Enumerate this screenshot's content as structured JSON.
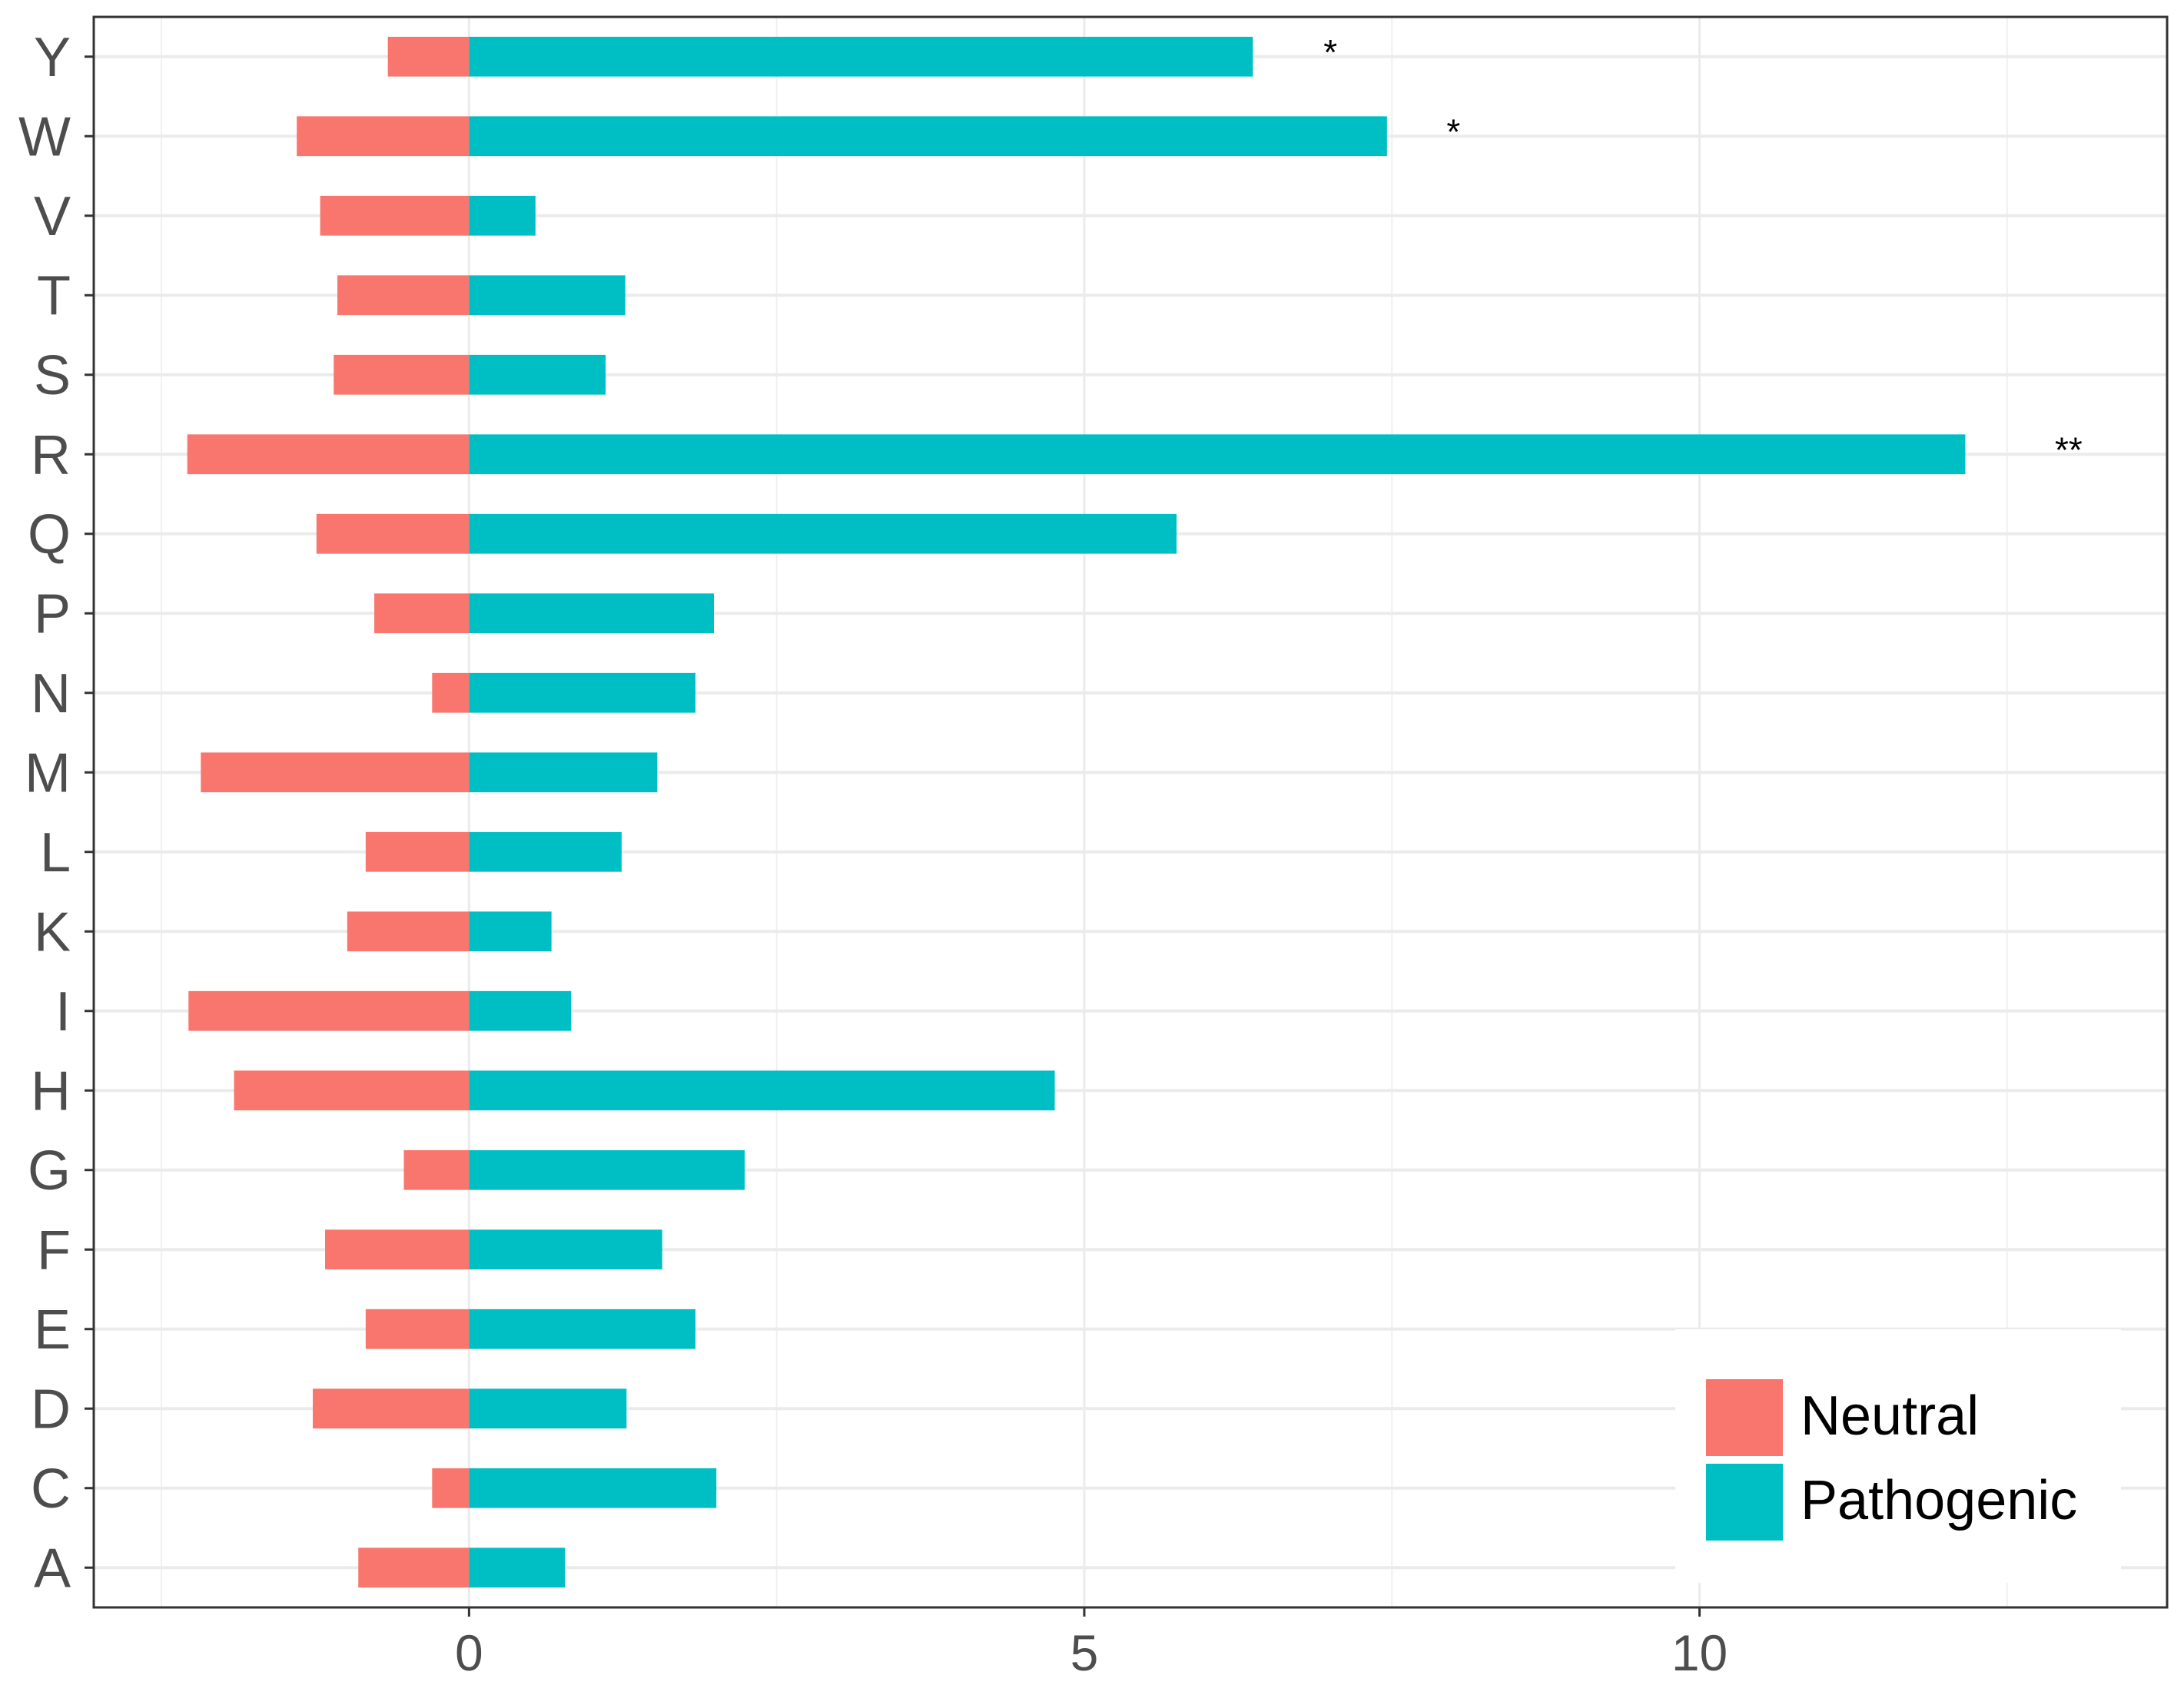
{
  "chart_data": {
    "type": "bar",
    "orientation": "horizontal",
    "categories": [
      "A",
      "C",
      "D",
      "E",
      "F",
      "G",
      "H",
      "I",
      "K",
      "L",
      "M",
      "N",
      "P",
      "Q",
      "R",
      "S",
      "T",
      "V",
      "W",
      "Y"
    ],
    "series": [
      {
        "name": "Neutral",
        "color": "#F8766D",
        "values": [
          -0.9,
          -0.3,
          -1.27,
          -0.84,
          -1.17,
          -0.53,
          -1.91,
          -2.28,
          -0.99,
          -0.84,
          -2.18,
          -0.3,
          -0.77,
          -1.24,
          -2.29,
          -1.1,
          -1.07,
          -1.21,
          -1.4,
          -0.66
        ]
      },
      {
        "name": "Pathogenic",
        "color": "#00BFC4",
        "values": [
          0.78,
          2.01,
          1.28,
          1.84,
          1.57,
          2.24,
          4.76,
          0.83,
          0.67,
          1.24,
          1.53,
          1.84,
          1.99,
          5.75,
          12.16,
          1.11,
          1.27,
          0.54,
          7.46,
          6.37
        ]
      }
    ],
    "annotations": [
      {
        "category": "Y",
        "text": "*",
        "x": 7.0
      },
      {
        "category": "W",
        "text": "*",
        "x": 8.0
      },
      {
        "category": "R",
        "text": "**",
        "x": 13.0
      }
    ],
    "xticks": [
      "0",
      "5",
      "10"
    ],
    "xlim": [
      -3.05,
      13.8
    ],
    "grid": true,
    "legend_position": "bottom-right",
    "title": "",
    "xlabel": "",
    "ylabel": ""
  }
}
